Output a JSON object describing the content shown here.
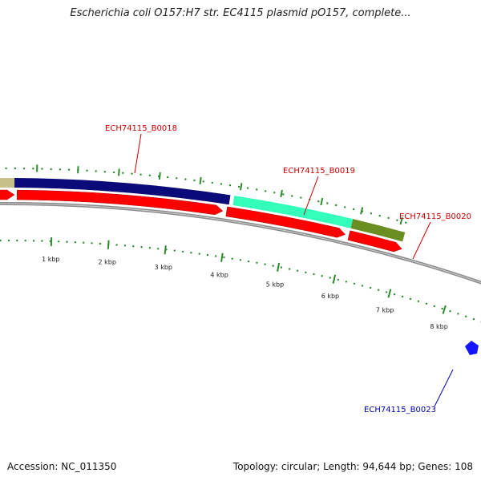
{
  "title": "Escherichia coli O157:H7 str. EC4115 plasmid pO157, complete...",
  "footer": {
    "accession": "Accession: NC_011350",
    "summary": "Topology: circular; Length: 94,644 bp; Genes: 108"
  },
  "colors": {
    "background": "#ffffff",
    "backbone": "#8c8c8c",
    "gene_arrow": "#ff0000",
    "tick": "#2e8b2e",
    "label_red": "#cc0000",
    "label_blue": "#0000aa",
    "segment_khaki": "#c8c08a",
    "segment_navy": "#0a0a78",
    "segment_aqua": "#33ffbb",
    "segment_olive": "#6b8e23",
    "marker_blue": "#1414ff"
  },
  "gene_labels": [
    {
      "id": "ECH74115_B0018",
      "color": "red"
    },
    {
      "id": "ECH74115_B0019",
      "color": "red"
    },
    {
      "id": "ECH74115_B0020",
      "color": "red"
    },
    {
      "id": "ECH74115_B0023",
      "color": "blue"
    }
  ],
  "kbp_ticks": [
    "1 kbp",
    "2 kbp",
    "3 kbp",
    "4 kbp",
    "5 kbp",
    "6 kbp",
    "7 kbp",
    "8 kbp"
  ]
}
